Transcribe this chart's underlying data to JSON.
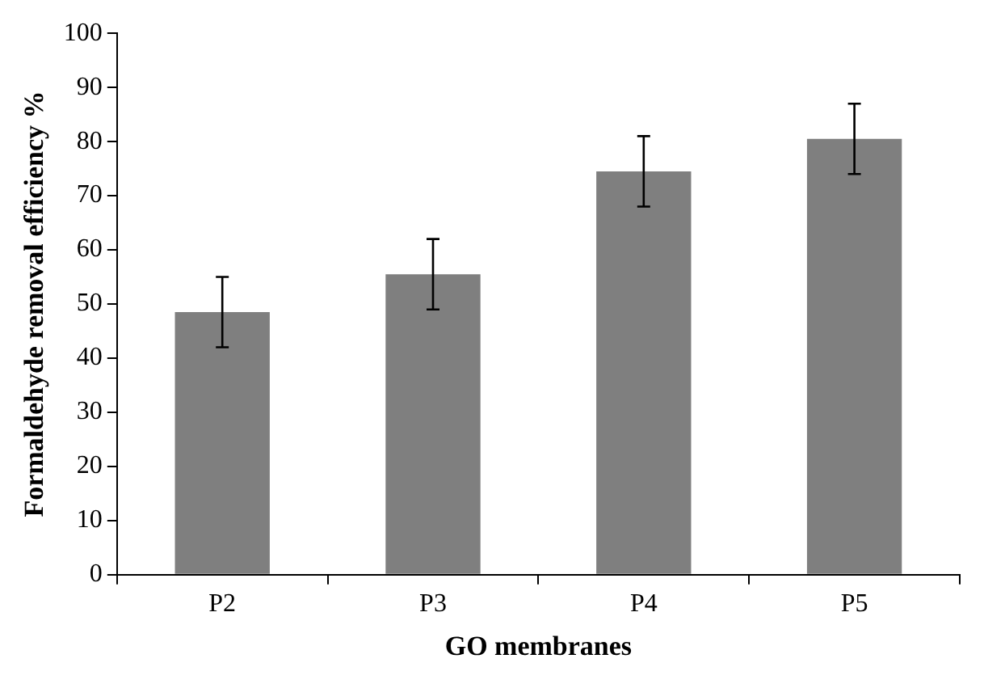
{
  "chart_data": {
    "type": "bar",
    "xlabel": "GO membranes",
    "ylabel": "Formaldehyde removal efficiency %",
    "categories": [
      "P2",
      "P3",
      "P4",
      "P5"
    ],
    "values": [
      48.5,
      55.5,
      74.5,
      80.5
    ],
    "errors": [
      6.5,
      6.5,
      6.5,
      6.5
    ],
    "color": "#7f7f7f",
    "ylim": [
      0,
      100
    ],
    "yticks": [
      0,
      10,
      20,
      30,
      40,
      50,
      60,
      70,
      80,
      90,
      100
    ],
    "grid": false,
    "legend": false
  }
}
